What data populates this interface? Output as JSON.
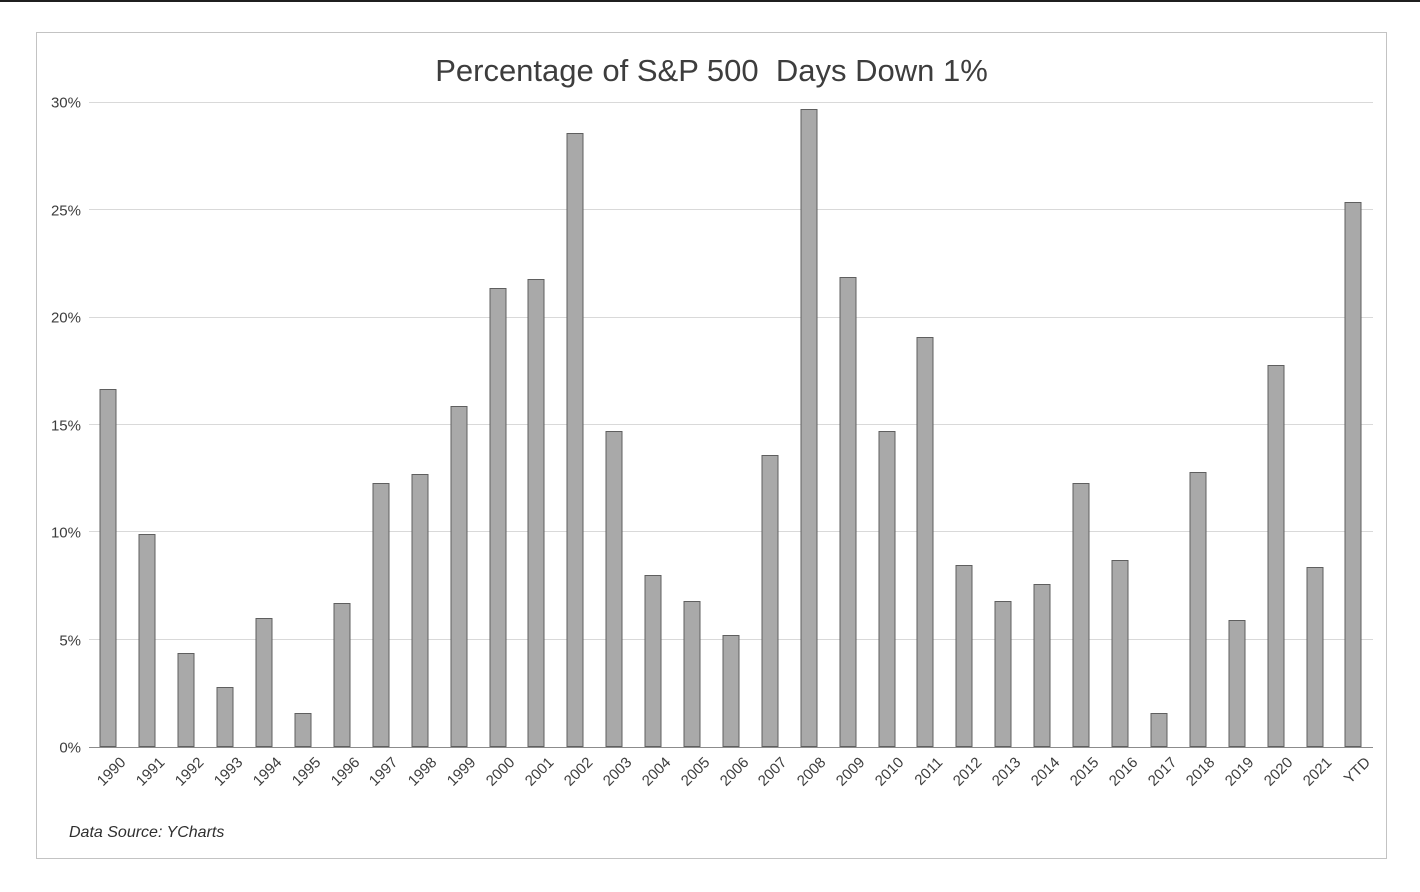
{
  "chart_data": {
    "type": "bar",
    "title": "Percentage of S&P 500  Days Down 1%",
    "xlabel": "",
    "ylabel": "",
    "categories": [
      "1990",
      "1991",
      "1992",
      "1993",
      "1994",
      "1995",
      "1996",
      "1997",
      "1998",
      "1999",
      "2000",
      "2001",
      "2002",
      "2003",
      "2004",
      "2005",
      "2006",
      "2007",
      "2008",
      "2009",
      "2010",
      "2011",
      "2012",
      "2013",
      "2014",
      "2015",
      "2016",
      "2017",
      "2018",
      "2019",
      "2020",
      "2021",
      "YTD"
    ],
    "values": [
      16.7,
      9.9,
      4.4,
      2.8,
      6.0,
      1.6,
      6.7,
      12.3,
      12.7,
      15.9,
      21.4,
      21.8,
      28.6,
      14.7,
      8.0,
      6.8,
      5.2,
      13.6,
      29.7,
      21.9,
      14.7,
      19.1,
      8.5,
      6.8,
      7.6,
      12.3,
      8.7,
      1.6,
      12.8,
      5.9,
      17.8,
      8.4,
      25.4
    ],
    "ylim": [
      0,
      30
    ],
    "yticks": [
      0,
      5,
      10,
      15,
      20,
      25,
      30
    ],
    "ytick_labels": [
      "0%",
      "5%",
      "10%",
      "15%",
      "20%",
      "25%",
      "30%"
    ],
    "grid": true,
    "legend": "none",
    "source_note": "Data Source: YCharts",
    "colors": {
      "bar_fill": "#a9a9a9",
      "bar_border": "#5f5f5f",
      "gridline": "#d9d9d9",
      "axis_line": "#8c8c8c",
      "text": "#3d3d3d"
    }
  }
}
